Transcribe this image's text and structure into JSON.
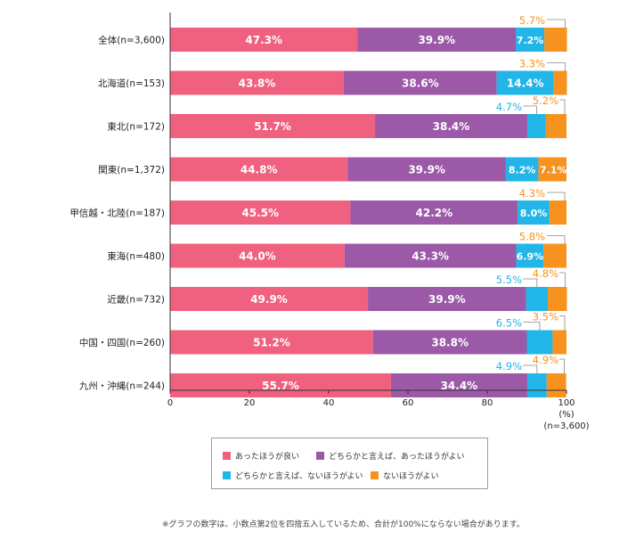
{
  "chart_data": {
    "type": "bar",
    "orientation": "horizontal",
    "stacked": true,
    "categories": [
      "全体(n=3,600)",
      "北海道(n=153)",
      "東北(n=172)",
      "関東(n=1,372)",
      "甲信越・北陸(n=187)",
      "東海(n=480)",
      "近畿(n=732)",
      "中国・四国(n=260)",
      "九州・沖縄(n=244)"
    ],
    "series": [
      {
        "name": "あったほうが良い",
        "color": "#f0607f",
        "values": [
          47.3,
          43.8,
          51.7,
          44.8,
          45.5,
          44.0,
          49.9,
          51.2,
          55.7
        ]
      },
      {
        "name": "どちらかと言えば、あったほうがよい",
        "color": "#9b59a8",
        "values": [
          39.9,
          38.6,
          38.4,
          39.9,
          42.2,
          43.3,
          39.9,
          38.8,
          34.4
        ]
      },
      {
        "name": "どちらかと言えば、ないほうがよい",
        "color": "#21b5e8",
        "values": [
          7.2,
          14.4,
          4.7,
          8.2,
          8.0,
          6.9,
          5.5,
          6.5,
          4.9
        ]
      },
      {
        "name": "ないほうがよい",
        "color": "#f7921e",
        "values": [
          5.7,
          3.3,
          5.2,
          7.1,
          4.3,
          5.8,
          4.8,
          3.5,
          4.9
        ]
      }
    ],
    "labels": [
      [
        "47.3%",
        "39.9%",
        "7.2%",
        "5.7%"
      ],
      [
        "43.8%",
        "38.6%",
        "14.4%",
        "3.3%"
      ],
      [
        "51.7%",
        "38.4%",
        "4.7%",
        "5.2%"
      ],
      [
        "44.8%",
        "39.9%",
        "8.2%",
        "7.1%"
      ],
      [
        "45.5%",
        "42.2%",
        "8.0%",
        "4.3%"
      ],
      [
        "44.0%",
        "43.3%",
        "6.9%",
        "5.8%"
      ],
      [
        "49.9%",
        "39.9%",
        "5.5%",
        "4.8%"
      ],
      [
        "51.2%",
        "38.8%",
        "6.5%",
        "3.5%"
      ],
      [
        "55.7%",
        "34.4%",
        "4.9%",
        "4.9%"
      ]
    ],
    "label_placement": [
      [
        "inside",
        "inside",
        "inside",
        "callout"
      ],
      [
        "inside",
        "inside",
        "inside",
        "callout"
      ],
      [
        "inside",
        "inside",
        "callout",
        "callout"
      ],
      [
        "inside",
        "inside",
        "inside",
        "inside"
      ],
      [
        "inside",
        "inside",
        "inside",
        "callout"
      ],
      [
        "inside",
        "inside",
        "inside",
        "callout"
      ],
      [
        "inside",
        "inside",
        "callout",
        "callout"
      ],
      [
        "inside",
        "inside",
        "callout",
        "callout"
      ],
      [
        "inside",
        "inside",
        "callout",
        "callout"
      ]
    ],
    "x_ticks": [
      "0",
      "20",
      "40",
      "60",
      "80",
      "100"
    ],
    "xlim": [
      0,
      100
    ],
    "unit_label": "(%)",
    "total_label": "(n=3,600)",
    "grid": false,
    "legend_position": "bottom"
  },
  "legend": {
    "items": [
      "あったほうが良い",
      "どちらかと言えば、あったほうがよい",
      "どちらかと言えば、ないほうがよい",
      "ないほうがよい"
    ]
  },
  "footnote": "※グラフの数字は、小数点第2位を四捨五入しているため、合計が100%にならない場合があります。"
}
